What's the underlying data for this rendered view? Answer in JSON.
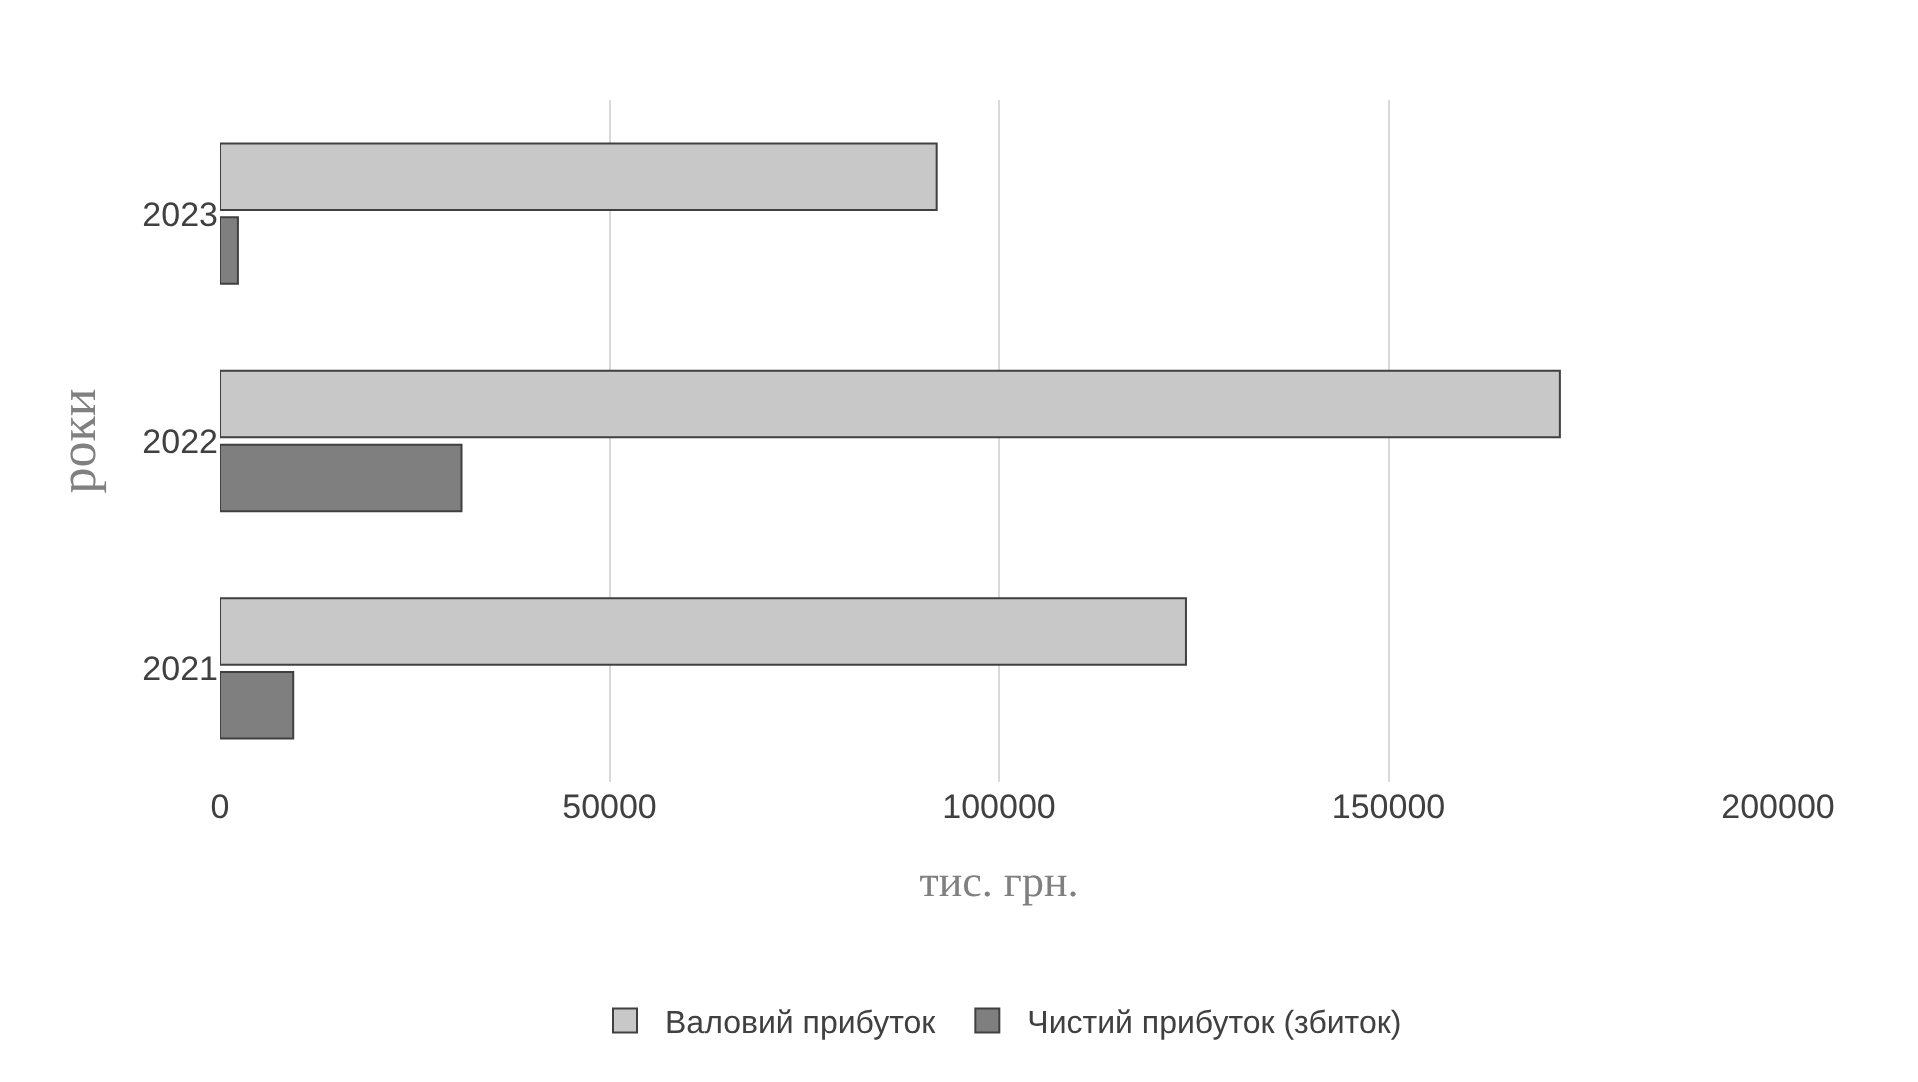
{
  "chart_data": {
    "type": "bar",
    "orientation": "horizontal",
    "xlabel": "тис. грн.",
    "ylabel": "роки",
    "categories": [
      "2023",
      "2022",
      "2021"
    ],
    "series": [
      {
        "name": "Валовий прибуток",
        "color": "#c8c8c8",
        "values": [
          92000,
          172000,
          124000
        ]
      },
      {
        "name": "Чистий прибуток (збиток)",
        "color": "#7f7f7f",
        "values": [
          2300,
          31000,
          9400
        ]
      }
    ],
    "xlim": [
      0,
      200000
    ],
    "xticks": [
      0,
      50000,
      100000,
      150000,
      200000
    ],
    "grid": "x",
    "legend": "bottom"
  }
}
